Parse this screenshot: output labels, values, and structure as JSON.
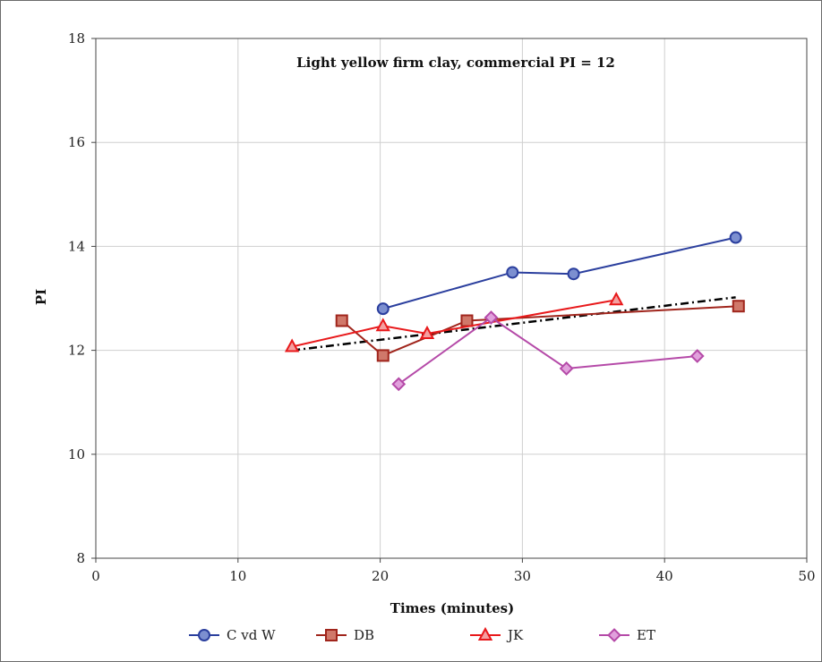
{
  "chart_data": {
    "type": "line",
    "title": "Light yellow firm clay, commercial PI = 12",
    "xlabel": "Times (minutes)",
    "ylabel": "PI",
    "xlim": [
      0,
      50
    ],
    "ylim": [
      8,
      18
    ],
    "xticks": [
      0,
      10,
      20,
      30,
      40,
      50
    ],
    "yticks": [
      8,
      10,
      12,
      14,
      16,
      18
    ],
    "grid": true,
    "legend_position": "bottom",
    "series": [
      {
        "name": "C vd W",
        "color": "#2b3f9e",
        "fill": "#7c8fd0",
        "marker": "circle",
        "points": [
          [
            20.2,
            12.8
          ],
          [
            29.3,
            13.5
          ],
          [
            33.6,
            13.47
          ],
          [
            45.0,
            14.17
          ]
        ]
      },
      {
        "name": "DB",
        "color": "#a0251c",
        "fill": "#d0786a",
        "marker": "square",
        "points": [
          [
            17.3,
            12.57
          ],
          [
            20.2,
            11.9
          ],
          [
            26.1,
            12.57
          ],
          [
            45.2,
            12.85
          ]
        ]
      },
      {
        "name": "JK",
        "color": "#e8191b",
        "fill": "#f4a0a0",
        "marker": "triangle",
        "points": [
          [
            13.8,
            12.07
          ],
          [
            20.2,
            12.47
          ],
          [
            23.3,
            12.32
          ],
          [
            36.6,
            12.97
          ]
        ]
      },
      {
        "name": "ET",
        "color": "#b54aa8",
        "fill": "#e1a0dc",
        "marker": "diamond",
        "points": [
          [
            21.3,
            11.35
          ],
          [
            27.8,
            12.63
          ],
          [
            33.1,
            11.65
          ],
          [
            42.3,
            11.89
          ]
        ]
      }
    ],
    "trendline": {
      "style": "dash-dot",
      "color": "#000000",
      "points": [
        [
          13.8,
          12.0
        ],
        [
          45.0,
          13.02
        ]
      ]
    }
  }
}
